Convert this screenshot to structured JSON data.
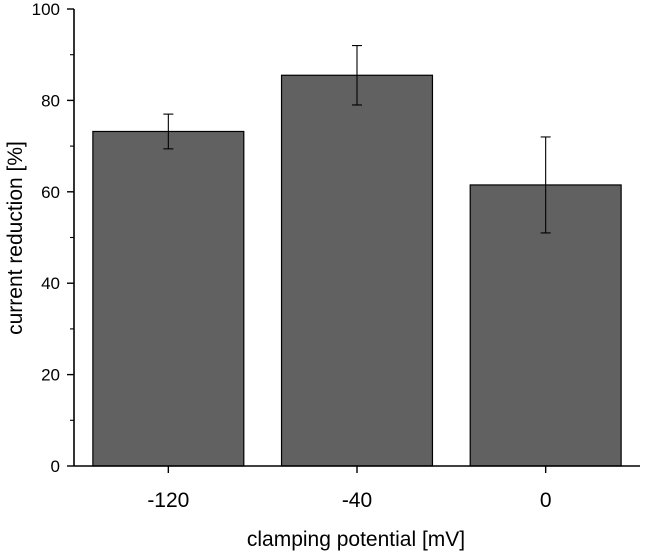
{
  "chart_data": {
    "type": "bar",
    "title": "",
    "xlabel": "clamping potential [mV]",
    "ylabel": "current reduction [%]",
    "categories": [
      "-120",
      "-40",
      "0"
    ],
    "values": [
      73.2,
      85.5,
      61.5
    ],
    "errors": [
      3.8,
      6.5,
      10.5
    ],
    "ylim": [
      0,
      100
    ],
    "yticks": [
      0,
      20,
      40,
      60,
      80,
      100
    ],
    "grid": false,
    "legend": "none",
    "bar_color": "#616161",
    "bar_edge_color": "#000000"
  }
}
